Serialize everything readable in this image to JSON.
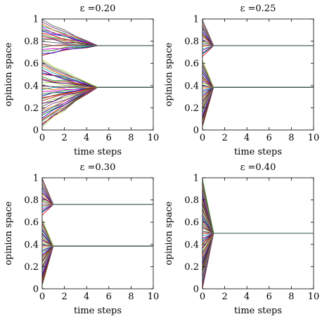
{
  "chart_data": [
    {
      "type": "line",
      "title": "ε =0.20",
      "xlabel": "time steps",
      "ylabel": "opinion space",
      "xlim": [
        0,
        10
      ],
      "ylim": [
        0,
        1
      ],
      "xticks": [
        0,
        2,
        4,
        6,
        8,
        10
      ],
      "yticks": [
        0,
        0.2,
        0.4,
        0.6,
        0.8,
        1
      ],
      "grid": false,
      "legend": "none",
      "clusters": [
        {
          "value": 0.76,
          "converge_step": 5,
          "initial_range": [
            0.67,
            1.0
          ]
        },
        {
          "value": 0.385,
          "converge_step": 5,
          "initial_range": [
            0.02,
            0.64
          ]
        }
      ]
    },
    {
      "type": "line",
      "title": "ε =0.25",
      "xlabel": "time steps",
      "ylabel": "opinion space",
      "xlim": [
        0,
        10
      ],
      "ylim": [
        0,
        1
      ],
      "xticks": [
        0,
        2,
        4,
        6,
        8,
        10
      ],
      "yticks": [
        0,
        0.2,
        0.4,
        0.6,
        0.8,
        1
      ],
      "grid": false,
      "legend": "none",
      "clusters": [
        {
          "value": 0.76,
          "converge_step": 1,
          "initial_range": [
            0.66,
            1.0
          ]
        },
        {
          "value": 0.385,
          "converge_step": 1,
          "initial_range": [
            0.02,
            0.63
          ]
        }
      ]
    },
    {
      "type": "line",
      "title": "ε =0.30",
      "xlabel": "time steps",
      "ylabel": "opinion space",
      "xlim": [
        0,
        10
      ],
      "ylim": [
        0,
        1
      ],
      "xticks": [
        0,
        2,
        4,
        6,
        8,
        10
      ],
      "yticks": [
        0,
        0.2,
        0.4,
        0.6,
        0.8,
        1
      ],
      "grid": false,
      "legend": "none",
      "clusters": [
        {
          "value": 0.76,
          "converge_step": 1,
          "initial_range": [
            0.66,
            1.0
          ]
        },
        {
          "value": 0.385,
          "converge_step": 1,
          "initial_range": [
            0.02,
            0.63
          ]
        }
      ]
    },
    {
      "type": "line",
      "title": "ε =0.40",
      "xlabel": "time steps",
      "ylabel": "opinion space",
      "xlim": [
        0,
        10
      ],
      "ylim": [
        0,
        1
      ],
      "xticks": [
        0,
        2,
        4,
        6,
        8,
        10
      ],
      "yticks": [
        0,
        0.2,
        0.4,
        0.6,
        0.8,
        1
      ],
      "grid": false,
      "legend": "none",
      "clusters": [
        {
          "value": 0.5,
          "converge_step": 1,
          "initial_range": [
            0.0,
            1.0
          ]
        }
      ]
    }
  ],
  "colors": {
    "palette": [
      "#d40000",
      "#0000cc",
      "#1a8a1a",
      "#cc00cc",
      "#00aaaa",
      "#e06000",
      "#7a3a7a",
      "#606060",
      "#9acd32",
      "#4b0082",
      "#b22222",
      "#228b22"
    ],
    "consensus_line": "#2f4f4f"
  }
}
